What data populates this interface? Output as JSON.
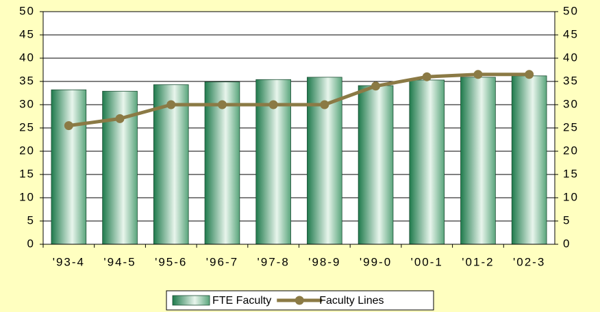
{
  "chart_data": {
    "type": "bar",
    "categories": [
      "'93-4",
      "'94-5",
      "'95-6",
      "'96-7",
      "'97-8",
      "'98-9",
      "'99-0",
      "'00-1",
      "'01-2",
      "'02-3"
    ],
    "series": [
      {
        "name": "FTE Faculty",
        "type": "bar",
        "color": "#2e8b57",
        "values": [
          33.2,
          32.9,
          34.3,
          34.9,
          35.4,
          35.9,
          34.1,
          35.3,
          35.9,
          36.2
        ]
      },
      {
        "name": "Faculty Lines",
        "type": "line",
        "axis": "y2",
        "color": "#8b7a45",
        "values": [
          25.5,
          27,
          30,
          30,
          30,
          30,
          34,
          36,
          36.5,
          36.5
        ]
      }
    ],
    "ylim": [
      0,
      50
    ],
    "yticks": [
      0,
      5,
      10,
      15,
      20,
      25,
      30,
      35,
      40,
      45,
      50
    ],
    "y2lim": [
      0,
      50
    ],
    "y2ticks": [
      0,
      5,
      10,
      15,
      20,
      25,
      30,
      35,
      40,
      45,
      50
    ],
    "grid": true
  }
}
